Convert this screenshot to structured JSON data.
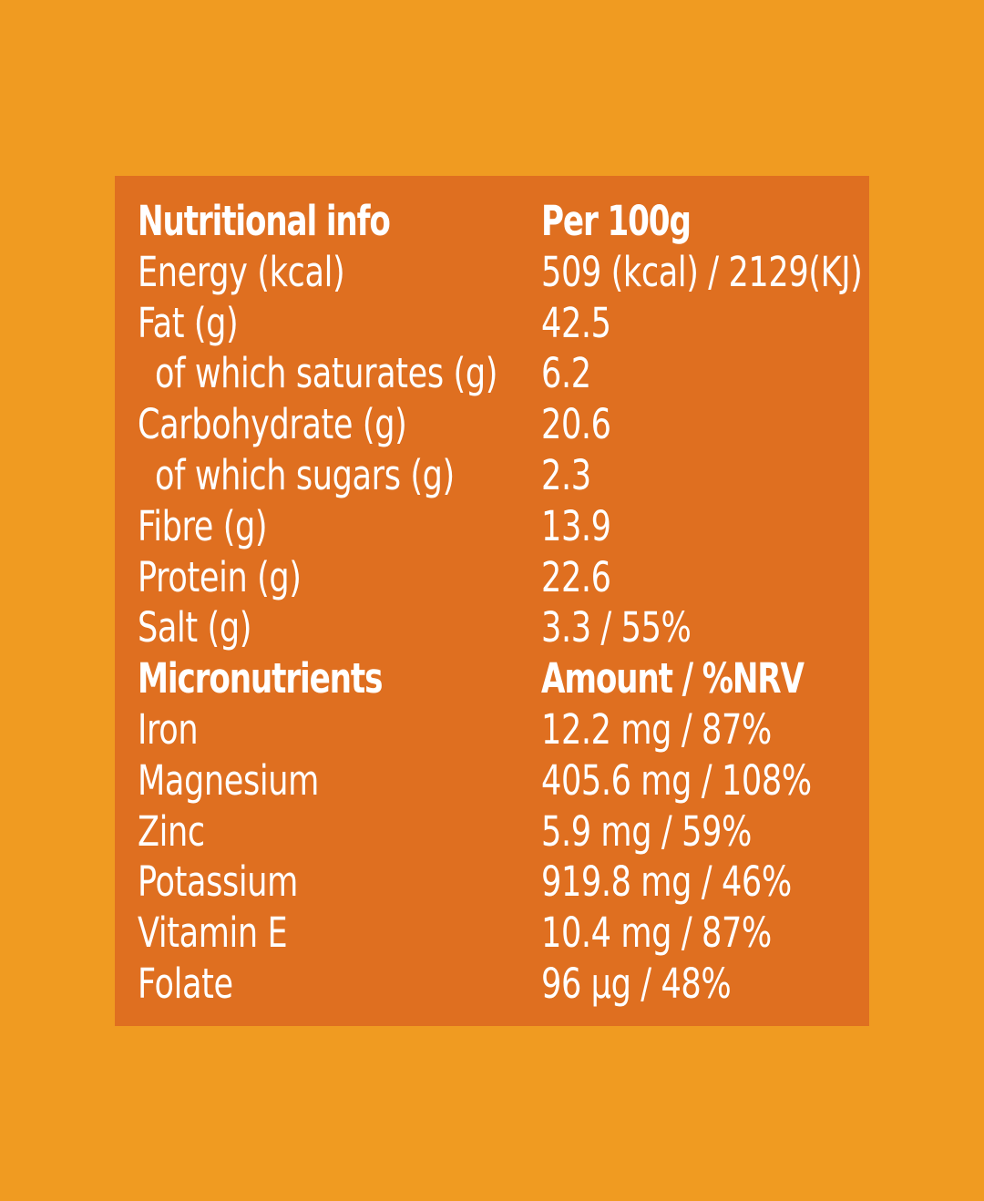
{
  "colors": {
    "background": "#F09B21",
    "panel": "#DF6F20",
    "text": "#FFFFFF"
  },
  "rows": [
    {
      "label": "Nutritional info",
      "value": "Per 100g",
      "heading": true,
      "indent": false
    },
    {
      "label": "Energy (kcal)",
      "value": "509 (kcal) / 2129(KJ)",
      "heading": false,
      "indent": false
    },
    {
      "label": "Fat (g)",
      "value": "42.5",
      "heading": false,
      "indent": false
    },
    {
      "label": "of which saturates (g)",
      "value": "6.2",
      "heading": false,
      "indent": true
    },
    {
      "label": "Carbohydrate (g)",
      "value": "20.6",
      "heading": false,
      "indent": false
    },
    {
      "label": "of which sugars (g)",
      "value": "2.3",
      "heading": false,
      "indent": true
    },
    {
      "label": "Fibre (g)",
      "value": "13.9",
      "heading": false,
      "indent": false
    },
    {
      "label": "Protein (g)",
      "value": "22.6",
      "heading": false,
      "indent": false
    },
    {
      "label": "Salt (g)",
      "value": "3.3 / 55%",
      "heading": false,
      "indent": false
    },
    {
      "label": "Micronutrients",
      "value": "Amount / %NRV",
      "heading": true,
      "indent": false
    },
    {
      "label": "Iron",
      "value": "12.2 mg / 87%",
      "heading": false,
      "indent": false
    },
    {
      "label": "Magnesium",
      "value": "405.6 mg / 108%",
      "heading": false,
      "indent": false
    },
    {
      "label": "Zinc",
      "value": "5.9 mg / 59%",
      "heading": false,
      "indent": false
    },
    {
      "label": "Potassium",
      "value": "919.8 mg / 46%",
      "heading": false,
      "indent": false
    },
    {
      "label": "Vitamin E",
      "value": "10.4 mg / 87%",
      "heading": false,
      "indent": false
    },
    {
      "label": "Folate",
      "value": "96 µg / 48%",
      "heading": false,
      "indent": false
    }
  ]
}
